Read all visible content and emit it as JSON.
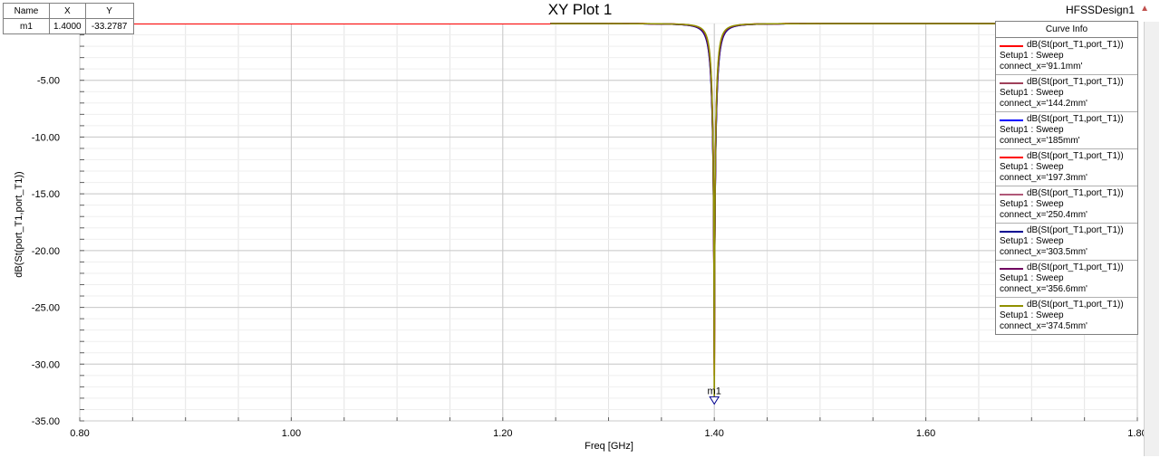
{
  "window": {
    "title": "XY Plot 1",
    "design_name": "HFSSDesign1"
  },
  "marker_table": {
    "headers": [
      "Name",
      "X",
      "Y"
    ],
    "rows": [
      [
        "m1",
        "1.4000",
        "-33.2787"
      ]
    ]
  },
  "marker": {
    "name": "m1",
    "x": 1.4,
    "y": -33.2787
  },
  "legend_title": "Curve Info",
  "chart_data": {
    "type": "line",
    "title": "XY Plot 1",
    "xlabel": "Freq [GHz]",
    "ylabel": "dB(St(port_T1,port_T1))",
    "xlim": [
      0.8,
      1.8
    ],
    "ylim": [
      -35,
      0
    ],
    "x_ticks": [
      0.8,
      1.0,
      1.2,
      1.4,
      1.6,
      1.8
    ],
    "x_tick_labels": [
      "0.80",
      "1.00",
      "1.20",
      "1.40",
      "1.60",
      "1.80"
    ],
    "y_ticks": [
      -5,
      -10,
      -15,
      -20,
      -25,
      -30,
      -35
    ],
    "y_tick_labels": [
      "-5.00",
      "-10.00",
      "-15.00",
      "-20.00",
      "-25.00",
      "-30.00",
      "-35.00"
    ],
    "grid": true,
    "legend_position": "top-right",
    "resonance_center_ghz": 1.4,
    "series": [
      {
        "name": "dB(St(port_T1,port_T1))",
        "setup": "Setup1 : Sweep",
        "param": "connect_x='91.1mm'",
        "color": "#ff0000",
        "min_db": -31.0,
        "width_ghz": 0.0042
      },
      {
        "name": "dB(St(port_T1,port_T1))",
        "setup": "Setup1 : Sweep",
        "param": "connect_x='144.2mm'",
        "color": "#a0405a",
        "min_db": -29.5,
        "width_ghz": 0.0044
      },
      {
        "name": "dB(St(port_T1,port_T1))",
        "setup": "Setup1 : Sweep",
        "param": "connect_x='185mm'",
        "color": "#0000ff",
        "min_db": -26.0,
        "width_ghz": 0.0046
      },
      {
        "name": "dB(St(port_T1,port_T1))",
        "setup": "Setup1 : Sweep",
        "param": "connect_x='197.3mm'",
        "color": "#ff0000",
        "min_db": -28.0,
        "width_ghz": 0.0043
      },
      {
        "name": "dB(St(port_T1,port_T1))",
        "setup": "Setup1 : Sweep",
        "param": "connect_x='250.4mm'",
        "color": "#b05878",
        "min_db": -27.5,
        "width_ghz": 0.0045
      },
      {
        "name": "dB(St(port_T1,port_T1))",
        "setup": "Setup1 : Sweep",
        "param": "connect_x='303.5mm'",
        "color": "#000090",
        "min_db": -25.5,
        "width_ghz": 0.0047
      },
      {
        "name": "dB(St(port_T1,port_T1))",
        "setup": "Setup1 : Sweep",
        "param": "connect_x='356.6mm'",
        "color": "#700060",
        "min_db": -30.0,
        "width_ghz": 0.0044
      },
      {
        "name": "dB(St(port_T1,port_T1))",
        "setup": "Setup1 : Sweep",
        "param": "connect_x='374.5mm'",
        "color": "#909000",
        "min_db": -33.2787,
        "width_ghz": 0.004
      }
    ]
  }
}
